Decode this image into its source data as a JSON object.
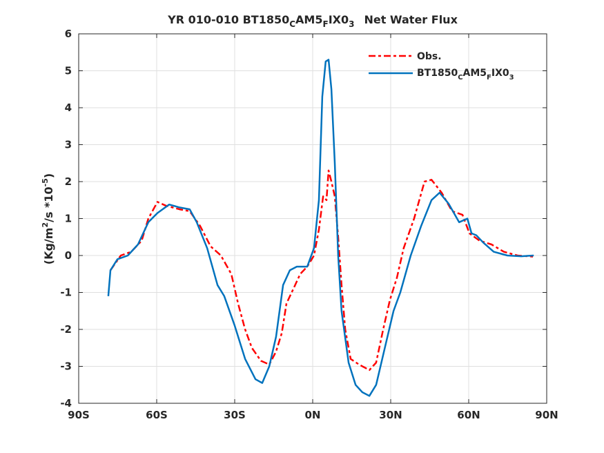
{
  "chart_data": {
    "type": "line",
    "title": {
      "prefix": "YR 010-010 BT1850",
      "sub1": "C",
      "mid": "AM5",
      "sub2": "F",
      "mid2": "IX0",
      "sub3": "3",
      "suffix": "Net Water Flux"
    },
    "xlabel": "",
    "ylabel": {
      "a": "(Kg/m",
      "sup1": "2",
      "b": "/s *10",
      "sup2": "-5",
      "c": ")"
    },
    "xlim": [
      -90,
      90
    ],
    "ylim": [
      -4,
      6
    ],
    "xticks": [
      -90,
      -60,
      -30,
      0,
      30,
      60,
      90
    ],
    "xtick_labels": [
      "90S",
      "60S",
      "30S",
      "0N",
      "30N",
      "60N",
      "90N"
    ],
    "yticks": [
      -4,
      -3,
      -2,
      -1,
      0,
      1,
      2,
      3,
      4,
      5,
      6
    ],
    "ytick_labels": [
      "-4",
      "-3",
      "-2",
      "-1",
      "0",
      "1",
      "2",
      "3",
      "4",
      "5",
      "6"
    ],
    "grid": true,
    "legend_position": "top-right",
    "series": [
      {
        "name": "Obs.",
        "legend": {
          "text": "Obs."
        },
        "color": "#ff0000",
        "style": "dash-dot",
        "x": [
          -77.8,
          -73.8,
          -69.8,
          -65.8,
          -63.2,
          -59.7,
          -56.5,
          -51.2,
          -47.3,
          -43.3,
          -39.3,
          -35.3,
          -31.3,
          -28.7,
          -26,
          -23.4,
          -19.9,
          -16.7,
          -14.1,
          -11.9,
          -10.1,
          -7.4,
          -4.8,
          -2.1,
          0.5,
          2.4,
          4.0,
          5.3,
          6.1,
          7.2,
          8.5,
          9.8,
          11.1,
          12.5,
          14.6,
          17.8,
          21.8,
          24.4,
          27.1,
          29.7,
          32.4,
          35.0,
          39.0,
          43.0,
          45.7,
          49.6,
          53.6,
          57.6,
          60.3,
          64.2,
          68.8,
          73.5,
          78.8,
          84.7
        ],
        "y": [
          -0.4,
          0.0,
          0.1,
          0.4,
          1.0,
          1.45,
          1.35,
          1.25,
          1.2,
          0.8,
          0.25,
          0.0,
          -0.5,
          -1.3,
          -2.0,
          -2.5,
          -2.85,
          -2.95,
          -2.6,
          -2.1,
          -1.3,
          -0.9,
          -0.5,
          -0.3,
          0.0,
          0.7,
          1.6,
          1.5,
          2.3,
          2.0,
          1.6,
          0.5,
          -0.8,
          -2.0,
          -2.8,
          -2.95,
          -3.1,
          -2.9,
          -2.0,
          -1.2,
          -0.6,
          0.2,
          1.0,
          2.0,
          2.05,
          1.7,
          1.2,
          1.1,
          0.6,
          0.4,
          0.3,
          0.1,
          0.0,
          -0.03
        ]
      },
      {
        "name": "BT1850_CAM5_FIX0_3",
        "legend": {
          "a": "BT1850",
          "s1": "C",
          "b": "AM5",
          "s2": "F",
          "c": "IX0",
          "s3": "3"
        },
        "color": "#0072bd",
        "style": "solid",
        "x": [
          -78.6,
          -77.8,
          -75.1,
          -71.1,
          -67.2,
          -63.2,
          -59.7,
          -55.2,
          -51.2,
          -47.3,
          -44.6,
          -40.6,
          -36.6,
          -34,
          -30,
          -26,
          -22,
          -19.4,
          -16.7,
          -14.1,
          -11.4,
          -8.8,
          -6.1,
          -2.1,
          0.5,
          2.4,
          3.7,
          5.0,
          6.1,
          7.2,
          8.5,
          9.8,
          11.1,
          13.8,
          16.5,
          19.1,
          21.8,
          24.4,
          28.4,
          31.1,
          33.7,
          37.7,
          41.7,
          45.7,
          48.8,
          52.3,
          56.3,
          59.5,
          61.1,
          62.9,
          65.6,
          69.6,
          74.9,
          80.2,
          85
        ],
        "y": [
          -1.1,
          -0.4,
          -0.1,
          0.0,
          0.3,
          0.9,
          1.15,
          1.38,
          1.3,
          1.25,
          0.9,
          0.2,
          -0.8,
          -1.1,
          -1.9,
          -2.8,
          -3.35,
          -3.45,
          -3.0,
          -2.2,
          -0.8,
          -0.4,
          -0.3,
          -0.3,
          0.2,
          1.5,
          4.3,
          5.25,
          5.3,
          4.5,
          2.5,
          0.0,
          -1.5,
          -2.9,
          -3.5,
          -3.7,
          -3.8,
          -3.5,
          -2.3,
          -1.5,
          -1.0,
          0.0,
          0.8,
          1.5,
          1.7,
          1.4,
          0.9,
          1.0,
          0.6,
          0.55,
          0.35,
          0.1,
          0.0,
          -0.02,
          0.0
        ]
      }
    ]
  }
}
